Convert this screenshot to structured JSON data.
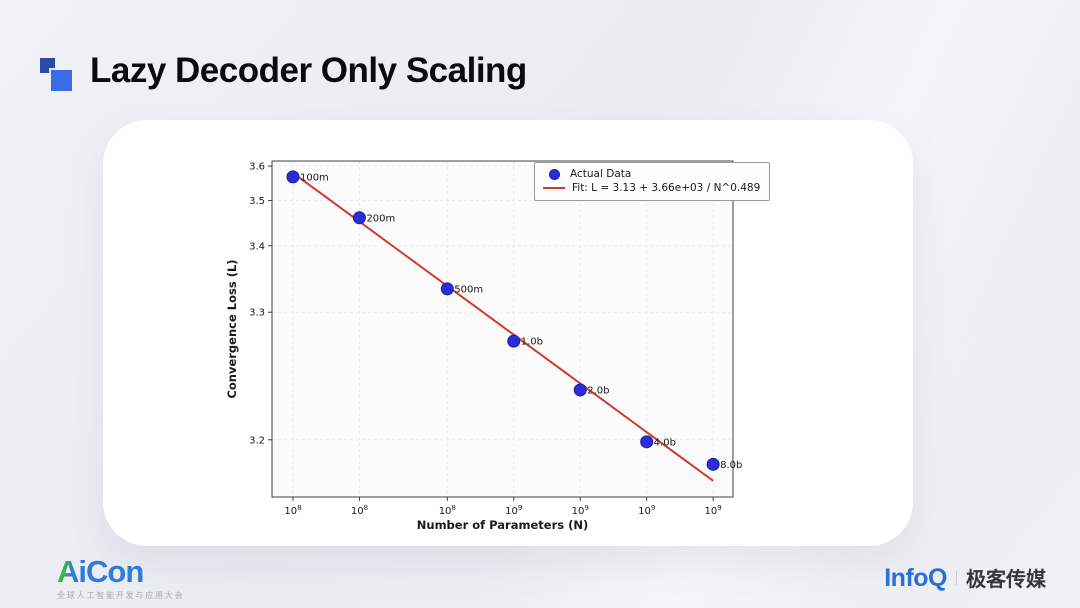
{
  "slide": {
    "title": "Lazy Decoder Only Scaling"
  },
  "footer": {
    "aicon_a": "A",
    "aicon_rest": "iCon",
    "aicon_tagline": "全球人工智能开发与应用大会",
    "infoq_word": "InfoQ",
    "infoq_brand": "极客传媒"
  },
  "colors": {
    "accent_blue": "#3a6be8",
    "dot_blue": "#2d2dd6",
    "dot_edge": "#1a1ab8",
    "fit_red": "#cf3b2a",
    "frame": "#3f3f3f",
    "grid": "#ebebeb",
    "plot_bg": "#fbfbfc"
  },
  "chart_data": {
    "type": "scatter",
    "title": "",
    "xlabel": "Number of Parameters (N)",
    "ylabel": "Convergence Loss (L)",
    "x_scale": "log10",
    "y_scale": "log10(L - 3.13)",
    "grid": true,
    "legend_position": "upper right",
    "xlim_log10": [
      7.905,
      9.993
    ],
    "ylim": [
      3.177,
      3.617
    ],
    "x_ticks": [
      {
        "value": 100000000.0,
        "base": "10",
        "exp": "8"
      },
      {
        "value": 200000000.0,
        "base": "10",
        "exp": "8"
      },
      {
        "value": 500000000.0,
        "base": "10",
        "exp": "8"
      },
      {
        "value": 1000000000.0,
        "base": "10",
        "exp": "9"
      },
      {
        "value": 2000000000.0,
        "base": "10",
        "exp": "9"
      },
      {
        "value": 4000000000.0,
        "base": "10",
        "exp": "9"
      },
      {
        "value": 8000000000.0,
        "base": "10",
        "exp": "9"
      }
    ],
    "y_ticks": [
      {
        "value": 3.6,
        "label": "3.6"
      },
      {
        "value": 3.5,
        "label": "3.5"
      },
      {
        "value": 3.4,
        "label": "3.4"
      },
      {
        "value": 3.3,
        "label": "3.3"
      },
      {
        "value": 3.2,
        "label": "3.2"
      }
    ],
    "points": [
      {
        "n": 100000000.0,
        "loss": 3.566,
        "label": "100m"
      },
      {
        "n": 200000000.0,
        "loss": 3.458,
        "label": "200m"
      },
      {
        "n": 500000000.0,
        "loss": 3.33,
        "label": "500m"
      },
      {
        "n": 1000000000.0,
        "loss": 3.269,
        "label": "1.0b"
      },
      {
        "n": 2000000000.0,
        "loss": 3.229,
        "label": "2.0b"
      },
      {
        "n": 4000000000.0,
        "loss": 3.199,
        "label": "4.0b"
      },
      {
        "n": 8000000000.0,
        "loss": 3.189,
        "label": "8.0b"
      }
    ],
    "fit": {
      "offset": 3.13,
      "coefficient": 3660,
      "exponent": 0.489,
      "n_range": [
        100000000.0,
        8000000000.0
      ]
    },
    "legend": {
      "entries": [
        {
          "label": "Actual Data"
        },
        {
          "label": "Fit: L = 3.13 + 3.66e+03 / N^0.489"
        }
      ]
    }
  }
}
